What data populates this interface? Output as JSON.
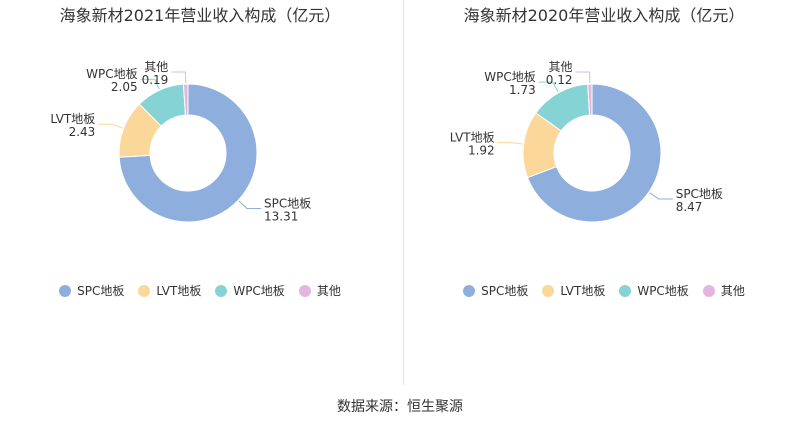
{
  "chart_data": [
    {
      "type": "pie",
      "title": "海象新材2021年营业收入构成（亿元）",
      "categories": [
        "SPC地板",
        "LVT地板",
        "WPC地板",
        "其他"
      ],
      "values": [
        13.31,
        2.43,
        2.05,
        0.19
      ],
      "value_labels": [
        "13.31",
        "2.43",
        "2.05",
        "0.19"
      ],
      "legend": "bottom"
    },
    {
      "type": "pie",
      "title": "海象新材2020年营业收入构成（亿元）",
      "categories": [
        "SPC地板",
        "LVT地板",
        "WPC地板",
        "其他"
      ],
      "values": [
        8.47,
        1.92,
        1.73,
        0.12
      ],
      "value_labels": [
        "8.47",
        "1.92",
        "1.73",
        "0.12"
      ],
      "legend": "bottom"
    }
  ],
  "colors": [
    "#8eaedd",
    "#fbd79a",
    "#86d3d6",
    "#e4b5de"
  ],
  "source": "数据来源：恒生聚源"
}
